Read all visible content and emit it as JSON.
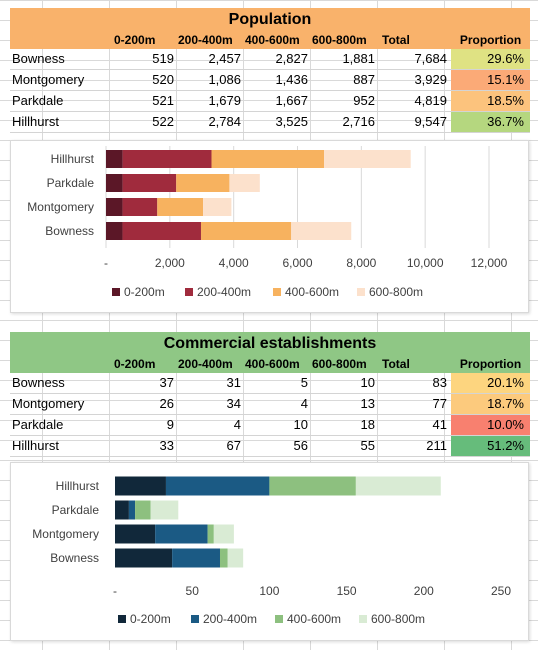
{
  "population": {
    "title": "Population",
    "header_color": "#f9b26b",
    "columns": [
      "0-200m",
      "200-400m",
      "400-600m",
      "600-800m",
      "Total",
      "Proportion"
    ],
    "rows": [
      {
        "name": "Bowness",
        "v": [
          "519",
          "2,457",
          "2,827",
          "1,881"
        ],
        "total": "7,684",
        "proportion": "29.6%",
        "prop_color": "#dfe283"
      },
      {
        "name": "Montgomery",
        "v": [
          "520",
          "1,086",
          "1,436",
          "887"
        ],
        "total": "3,929",
        "proportion": "15.1%",
        "prop_color": "#fbaa77"
      },
      {
        "name": "Parkdale",
        "v": [
          "521",
          "1,679",
          "1,667",
          "952"
        ],
        "total": "4,819",
        "proportion": "18.5%",
        "prop_color": "#fcc37d"
      },
      {
        "name": "Hillhurst",
        "v": [
          "522",
          "2,784",
          "3,525",
          "2,716"
        ],
        "total": "9,547",
        "proportion": "36.7%",
        "prop_color": "#b5d77f"
      }
    ]
  },
  "commercial": {
    "title": "Commercial establishments",
    "header_color": "#8fc785",
    "columns": [
      "0-200m",
      "200-400m",
      "400-600m",
      "600-800m",
      "Total",
      "Proportion"
    ],
    "rows": [
      {
        "name": "Bowness",
        "v": [
          "37",
          "31",
          "5",
          "10"
        ],
        "total": "83",
        "proportion": "20.1%",
        "prop_color": "#fdd57f"
      },
      {
        "name": "Montgomery",
        "v": [
          "26",
          "34",
          "4",
          "13"
        ],
        "total": "77",
        "proportion": "18.7%",
        "prop_color": "#fcca7d"
      },
      {
        "name": "Parkdale",
        "v": [
          "9",
          "4",
          "10",
          "18"
        ],
        "total": "41",
        "proportion": "10.0%",
        "prop_color": "#f8806f"
      },
      {
        "name": "Hillhurst",
        "v": [
          "33",
          "67",
          "56",
          "55"
        ],
        "total": "211",
        "proportion": "51.2%",
        "prop_color": "#66bc7b"
      }
    ]
  },
  "chart_data": [
    {
      "type": "bar",
      "orientation": "horizontal-stacked",
      "categories": [
        "Hillhurst",
        "Parkdale",
        "Montgomery",
        "Bowness"
      ],
      "series": [
        {
          "name": "0-200m",
          "values": [
            522,
            521,
            520,
            519
          ],
          "color": "#5b1727"
        },
        {
          "name": "200-400m",
          "values": [
            2784,
            1679,
            1086,
            2457
          ],
          "color": "#a02b3d"
        },
        {
          "name": "400-600m",
          "values": [
            3525,
            1667,
            1436,
            2827
          ],
          "color": "#f7b25f"
        },
        {
          "name": "600-800m",
          "values": [
            2716,
            952,
            887,
            1881
          ],
          "color": "#fce1cc"
        }
      ],
      "xlim": [
        0,
        12000
      ],
      "xticks": [
        "-",
        "2,000",
        "4,000",
        "6,000",
        "8,000",
        "10,000",
        "12,000"
      ],
      "xtick_values": [
        0,
        2000,
        4000,
        6000,
        8000,
        10000,
        12000
      ],
      "grid": true,
      "legend": "bottom"
    },
    {
      "type": "bar",
      "orientation": "horizontal-stacked",
      "categories": [
        "Hillhurst",
        "Parkdale",
        "Montgomery",
        "Bowness"
      ],
      "series": [
        {
          "name": "0-200m",
          "values": [
            33,
            9,
            26,
            37
          ],
          "color": "#11283a"
        },
        {
          "name": "200-400m",
          "values": [
            67,
            4,
            34,
            31
          ],
          "color": "#1b5a84"
        },
        {
          "name": "400-600m",
          "values": [
            56,
            10,
            4,
            5
          ],
          "color": "#8dc07f"
        },
        {
          "name": "600-800m",
          "values": [
            55,
            18,
            13,
            10
          ],
          "color": "#d9ebd4"
        }
      ],
      "xlim": [
        0,
        250
      ],
      "xticks": [
        "-",
        "50",
        "100",
        "150",
        "200",
        "250"
      ],
      "xtick_values": [
        0,
        50,
        100,
        150,
        200,
        250
      ],
      "grid": false,
      "legend": "bottom"
    }
  ]
}
